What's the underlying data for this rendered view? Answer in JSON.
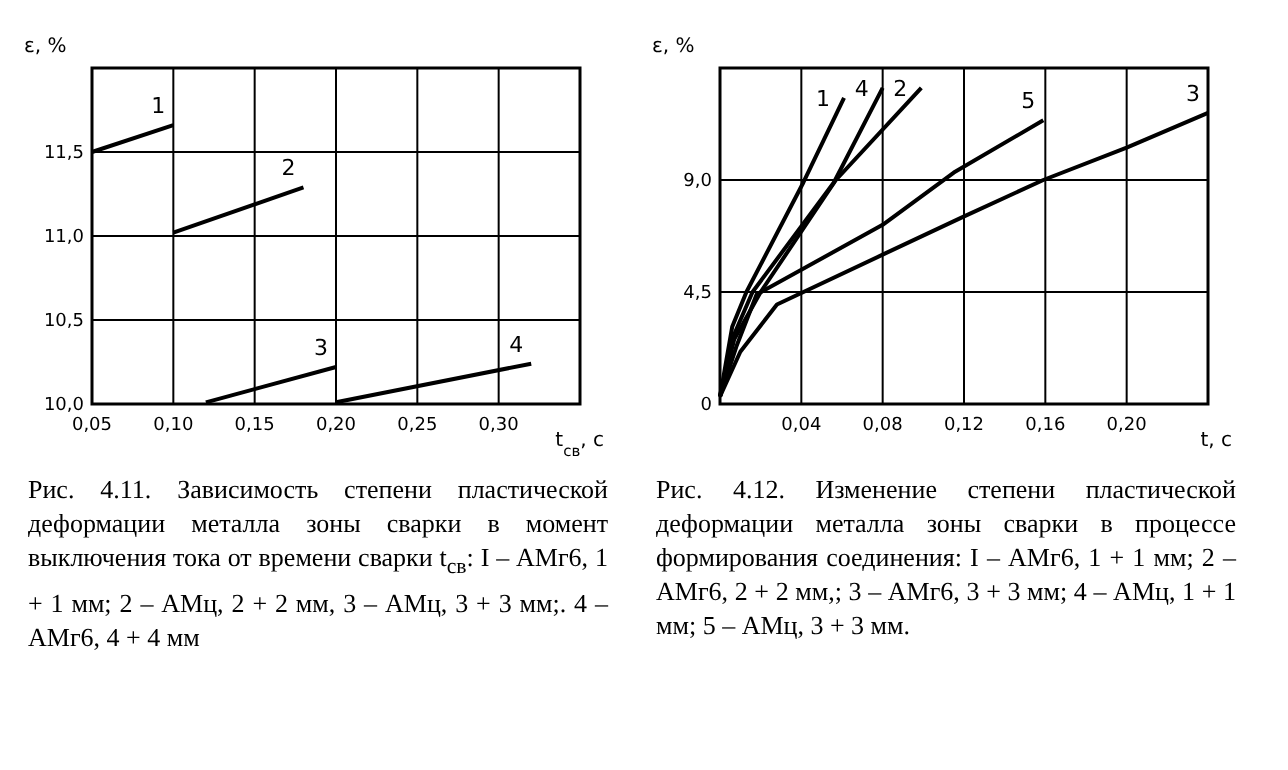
{
  "chart_data": [
    {
      "type": "line",
      "xlabel": "t$_{св}$, с",
      "ylabel": "ε, %",
      "xlim": [
        0.05,
        0.35
      ],
      "ylim": [
        10.0,
        12.0
      ],
      "grid": true,
      "xticks": [
        {
          "value": 0.05,
          "label": "0,05"
        },
        {
          "value": 0.1,
          "label": "0,10"
        },
        {
          "value": 0.15,
          "label": "0,15"
        },
        {
          "value": 0.2,
          "label": "0,20"
        },
        {
          "value": 0.25,
          "label": "0,25"
        },
        {
          "value": 0.3,
          "label": "0,30"
        }
      ],
      "yticks": [
        {
          "value": 10.0,
          "label": "10,0"
        },
        {
          "value": 10.5,
          "label": "10,5"
        },
        {
          "value": 11.0,
          "label": "11,0"
        },
        {
          "value": 11.5,
          "label": "11,5"
        }
      ],
      "series": [
        {
          "name": "1",
          "color": "#000000",
          "x": [
            0.05,
            0.1
          ],
          "values": [
            11.5,
            11.66
          ]
        },
        {
          "name": "2",
          "color": "#000000",
          "x": [
            0.1,
            0.18
          ],
          "values": [
            11.02,
            11.29
          ]
        },
        {
          "name": "3",
          "color": "#000000",
          "x": [
            0.12,
            0.2
          ],
          "values": [
            10.01,
            10.22
          ]
        },
        {
          "name": "4",
          "color": "#000000",
          "x": [
            0.2,
            0.32
          ],
          "values": [
            10.01,
            10.24
          ]
        }
      ],
      "annotations": [
        "Рис. 4.11. Зависимость степени пластической деформации металла зоны сварки в момент выключения тока от времени сварки t$_{св}$: I – АМг6, 1 + 1 мм; 2 – АМц, 2 + 2 мм, 3 – АМц, 3 + 3 мм;. 4 – АМг6, 4 + 4 мм"
      ]
    },
    {
      "type": "line",
      "xlabel": "t, с",
      "ylabel": "ε, %",
      "xlim": [
        0,
        0.24
      ],
      "ylim": [
        0,
        13.5
      ],
      "grid": true,
      "xticks": [
        {
          "value": 0.04,
          "label": "0,04"
        },
        {
          "value": 0.08,
          "label": "0,08"
        },
        {
          "value": 0.12,
          "label": "0,12"
        },
        {
          "value": 0.16,
          "label": "0,16"
        },
        {
          "value": 0.2,
          "label": "0,20"
        }
      ],
      "yticks": [
        0,
        {
          "value": 4.5,
          "label": "4,5"
        },
        {
          "value": 9.0,
          "label": "9,0"
        }
      ],
      "series": [
        {
          "name": "1",
          "color": "#000000",
          "x": [
            0,
            0.006,
            0.013,
            0.041,
            0.061
          ],
          "values": [
            0.3,
            3.1,
            4.5,
            8.9,
            12.3
          ]
        },
        {
          "name": "4",
          "color": "#000000",
          "x": [
            0,
            0.007,
            0.016,
            0.056,
            0.08
          ],
          "values": [
            0.3,
            2.8,
            4.5,
            8.9,
            12.7
          ]
        },
        {
          "name": "2",
          "color": "#000000",
          "x": [
            0,
            0.007,
            0.02,
            0.057,
            0.099
          ],
          "values": [
            0.3,
            2.6,
            4.5,
            9.0,
            12.7
          ]
        },
        {
          "name": "5",
          "color": "#000000",
          "x": [
            0,
            0.008,
            0.018,
            0.08,
            0.115,
            0.159
          ],
          "values": [
            0.3,
            2.3,
            4.4,
            7.2,
            9.3,
            11.4
          ]
        },
        {
          "name": "3",
          "color": "#000000",
          "x": [
            0,
            0.01,
            0.028,
            0.08,
            0.119,
            0.159,
            0.2,
            0.24
          ],
          "values": [
            0.3,
            2.1,
            4.0,
            6.0,
            7.5,
            9.0,
            10.3,
            11.7
          ]
        }
      ],
      "annotations": [
        "Рис. 4.12. Изменение степени пластической деформации металла зоны сварки в процессе формирования соединения: I – АМг6, 1 + 1 мм; 2 – АМг6, 2 + 2 мм,; 3 – АМг6, 3 + 3 мм; 4 – АМц, 1 + 1 мм; 5 – АМц, 3 + 3 мм."
      ]
    }
  ]
}
